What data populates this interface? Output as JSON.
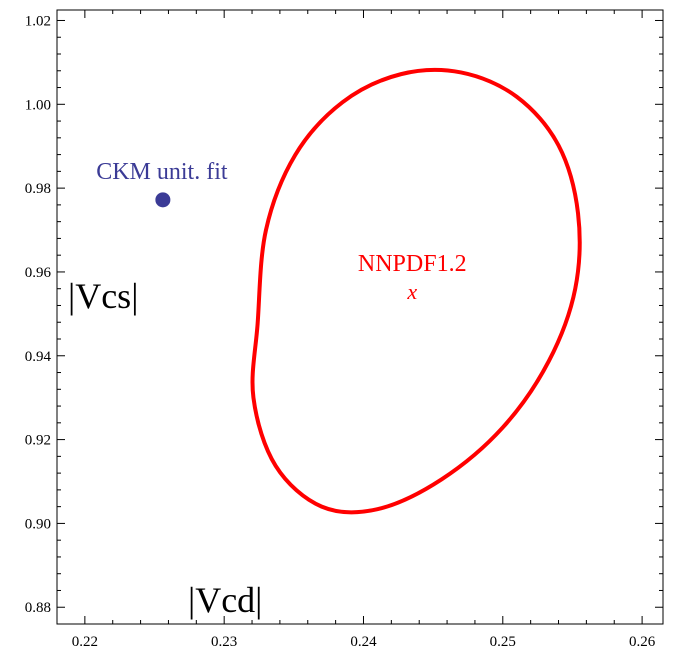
{
  "chart_data": {
    "type": "scatter",
    "xlabel": "|Vcd|",
    "ylabel": "|Vcs|",
    "xlim": [
      0.218,
      0.2615
    ],
    "ylim": [
      0.876,
      1.0225
    ],
    "xticks": [
      0.22,
      0.23,
      0.24,
      0.25,
      0.26
    ],
    "xtick_labels": [
      "0.22",
      "0.23",
      "0.24",
      "0.25",
      "0.26"
    ],
    "yticks": [
      0.88,
      0.9,
      0.92,
      0.94,
      0.96,
      0.98,
      1.0,
      1.02
    ],
    "ytick_labels": [
      "0.88",
      "0.90",
      "0.92",
      "0.94",
      "0.96",
      "0.98",
      "1.00",
      "1.02"
    ],
    "grid": false,
    "point": {
      "label": "CKM unit. fit",
      "x": 0.2256,
      "y": 0.9772,
      "color": "#3b3b96"
    },
    "contour": {
      "label": "NNPDF1.2",
      "marker": "x",
      "marker_x": 0.2435,
      "marker_y": 0.9545,
      "color": "#ff0000",
      "center_x": 0.2438,
      "center_y": 0.9557,
      "ellipse_points": [
        [
          0.2324,
          0.9476
        ],
        [
          0.233,
          0.97
        ],
        [
          0.2351,
          0.9879
        ],
        [
          0.2385,
          1.0005
        ],
        [
          0.2427,
          1.0072
        ],
        [
          0.247,
          1.0076
        ],
        [
          0.251,
          1.0018
        ],
        [
          0.254,
          0.9902
        ],
        [
          0.2554,
          0.974
        ],
        [
          0.2552,
          0.956
        ],
        [
          0.2533,
          0.9387
        ],
        [
          0.25,
          0.9229
        ],
        [
          0.2456,
          0.9105
        ],
        [
          0.241,
          0.9034
        ],
        [
          0.237,
          0.904
        ],
        [
          0.2337,
          0.9137
        ],
        [
          0.2321,
          0.93
        ]
      ]
    }
  }
}
